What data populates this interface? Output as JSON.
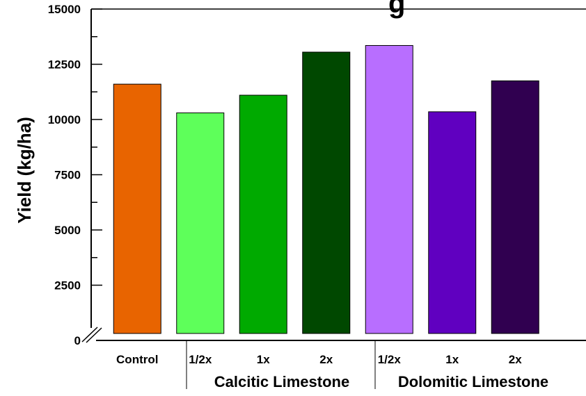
{
  "chart_data": {
    "type": "bar",
    "title": "",
    "title_visible_fragment": "g",
    "ylabel": "Yield (kg/ha)",
    "xlabel": "",
    "ylim": [
      0,
      15000
    ],
    "yticks": [
      "0",
      "2500",
      "5000",
      "7500",
      "10000",
      "12500",
      "15000"
    ],
    "axis_break": true,
    "grid": false,
    "categories": [
      "Control",
      "1/2x",
      "1x",
      "2x",
      "1/2x",
      "1x",
      "2x"
    ],
    "values": [
      11600,
      10300,
      11100,
      13050,
      13350,
      10350,
      11750
    ],
    "bar_colors": [
      "#e86400",
      "#5eff5a",
      "#00aa00",
      "#004800",
      "#b86eff",
      "#6000c0",
      "#300050"
    ],
    "groups": [
      {
        "label": "Calcitic Limestone",
        "members": [
          1,
          2,
          3
        ]
      },
      {
        "label": "Dolomitic Limestone",
        "members": [
          4,
          5,
          6
        ]
      }
    ]
  }
}
